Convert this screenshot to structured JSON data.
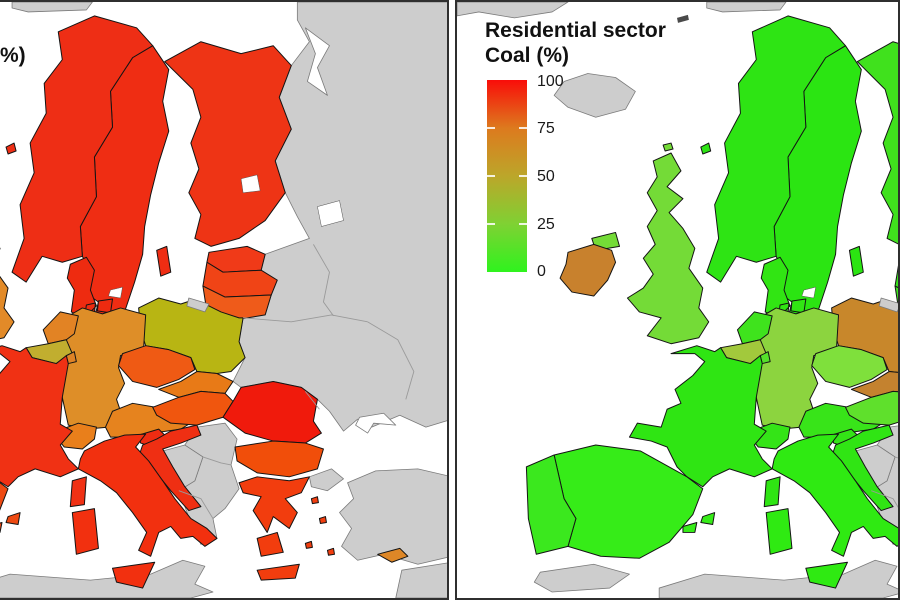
{
  "figure": {
    "type": "choropleth-map-pair",
    "region": "Europe"
  },
  "base": {
    "sea_color": "#ffffff",
    "nodata_fill": "#cdcdcd",
    "nodata_stroke": "#7b7b7b",
    "country_stroke": "#141414",
    "frame_color": "#2f2f2f",
    "lake_fill": "#ffffff"
  },
  "left_panel": {
    "partial_title": "%)",
    "colors": {
      "norway": "#ee2e15",
      "sweden": "#ef2d13",
      "finland": "#ee3415",
      "denmark": "#ee2b10",
      "estonia": "#f03a18",
      "latvia": "#f04416",
      "lithuania": "#ef5b1a",
      "poland": "#b8b513",
      "germany": "#de8e28",
      "netherlands": "#e28324",
      "belgium": "#c1ae2f",
      "luxembourg": "#df8326",
      "france": "#f03114",
      "uk": "#e28a28",
      "ireland": "#c9802b",
      "spain": "#ee4a12",
      "portugal": "#ee3e12",
      "switzerland": "#e97f1b",
      "austria": "#e6831e",
      "czechia": "#ef5a14",
      "slovakia": "#e87a17",
      "hungary": "#f0560e",
      "slovenia": "#ee2c12",
      "croatia": "#ef2f13",
      "italy": "#f2300f",
      "romania": "#f01a0c",
      "bulgaria": "#f14e0a",
      "greece": "#f23d0e",
      "cyprus": "#de8727"
    }
  },
  "right_panel": {
    "legend": {
      "title_line1": "Residential sector",
      "title_line2": "Coal (%)",
      "ticks": [
        "100",
        "75",
        "50",
        "25",
        "0"
      ],
      "gradient_stops_bottom_to_top": [
        "#2ff31e",
        "#7fd133",
        "#bca62a",
        "#dd7a1e",
        "#f90d09"
      ]
    },
    "colors": {
      "norway": "#2ee414",
      "sweden": "#2be512",
      "finland": "#40e11d",
      "denmark": "#31e513",
      "estonia": "#35e41a",
      "latvia": "#38e31c",
      "lithuania": "#3ee21e",
      "poland": "#c8872b",
      "germany": "#8cd43f",
      "netherlands": "#3fe31d",
      "belgium": "#a2c93c",
      "luxembourg": "#55e02a",
      "france": "#2fe513",
      "uk": "#74db37",
      "ireland": "#c8812d",
      "spain": "#36ec18",
      "portugal": "#3be81e",
      "switzerland": "#34e417",
      "austria": "#38e419",
      "czechia": "#7fe03c",
      "slovakia": "#c4822f",
      "hungary": "#5fe02c",
      "slovenia": "#33e416",
      "croatia": "#30e514",
      "italy": "#2fea12",
      "romania": "#2fe513",
      "bulgaria": "#3ae417",
      "greece": "#34e415",
      "cyprus": "#de8727"
    }
  }
}
